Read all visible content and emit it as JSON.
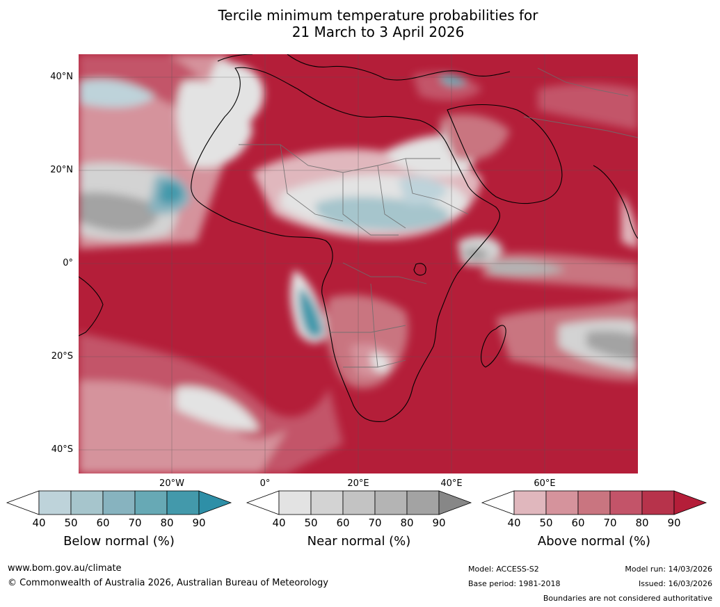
{
  "title": {
    "line1": "Tercile minimum temperature probabilities for",
    "line2": "21 March to 3 April 2026"
  },
  "map": {
    "lat_labels": [
      "40°N",
      "20°N",
      "0°",
      "20°S",
      "40°S"
    ],
    "lon_labels": [
      "20°W",
      "0°",
      "20°E",
      "40°E",
      "60°E"
    ]
  },
  "legends": [
    {
      "name": "Below normal (%)",
      "ticks": [
        "40",
        "50",
        "60",
        "70",
        "80",
        "90"
      ],
      "colors": [
        "#bed3da",
        "#a6c5cc",
        "#87b3bf",
        "#67a9b5",
        "#4399ab",
        "#2e8fa7"
      ]
    },
    {
      "name": "Near normal (%)",
      "ticks": [
        "40",
        "50",
        "60",
        "70",
        "80",
        "90"
      ],
      "colors": [
        "#e3e3e3",
        "#d3d3d3",
        "#c3c3c3",
        "#b4b4b4",
        "#a3a3a3",
        "#878787"
      ]
    },
    {
      "name": "Above normal (%)",
      "ticks": [
        "40",
        "50",
        "60",
        "70",
        "80",
        "90"
      ],
      "colors": [
        "#e0b7bd",
        "#d5939c",
        "#c97580",
        "#c35469",
        "#b7334b",
        "#b41e39"
      ]
    }
  ],
  "footer": {
    "website": "www.bom.gov.au/climate",
    "copyright": "© Commonwealth of Australia 2026, Australian Bureau of Meteorology",
    "model": "Model: ACCESS-S2",
    "base_period": "Base period: 1981-2018",
    "model_run": "Model run: 14/03/2026",
    "issued": "Issued: 16/03/2026",
    "disclaimer": "Boundaries are not considered authoritative"
  }
}
